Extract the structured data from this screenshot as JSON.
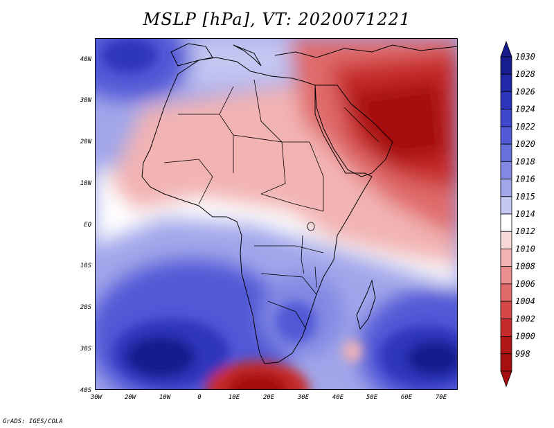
{
  "title": "MSLP [hPa], VT: 2020071221",
  "footer": "GrADS: IGES/COLA",
  "lat_labels": [
    "40N",
    "30N",
    "20N",
    "10N",
    "EQ",
    "10S",
    "20S",
    "30S",
    "40S"
  ],
  "lon_labels": [
    "30W",
    "20W",
    "10W",
    "0",
    "10E",
    "20E",
    "30E",
    "40E",
    "50E",
    "60E",
    "70E"
  ],
  "colorbar": {
    "labels": [
      "1030",
      "1028",
      "1026",
      "1024",
      "1022",
      "1020",
      "1018",
      "1016",
      "1015",
      "1014",
      "1012",
      "1010",
      "1008",
      "1006",
      "1004",
      "1002",
      "1000",
      "998"
    ],
    "colors": [
      "#171d8c",
      "#2028a8",
      "#2d35bd",
      "#3f47cc",
      "#5159d6",
      "#6870dd",
      "#8289e3",
      "#a1a6ea",
      "#c4c7f2",
      "#ffffff",
      "#f7d7d7",
      "#f2b3b3",
      "#ea8f8f",
      "#e06a6a",
      "#d44848",
      "#c62b2b",
      "#b01616",
      "#a50f0f"
    ]
  }
}
